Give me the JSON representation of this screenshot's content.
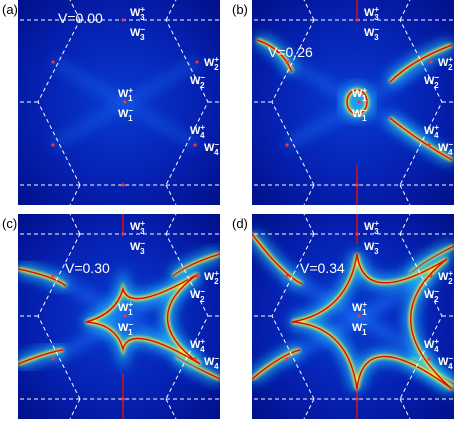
{
  "panels": [
    {
      "label": "(a)",
      "voltage": "V=0.00",
      "points": [
        {
          "base": "W",
          "sup": "+",
          "sub": "3"
        },
        {
          "base": "W",
          "sup": "−",
          "sub": "3"
        },
        {
          "base": "W",
          "sup": "+",
          "sub": "2"
        },
        {
          "base": "W",
          "sup": "−",
          "sub": "2"
        },
        {
          "base": "W",
          "sup": "+",
          "sub": "1"
        },
        {
          "base": "W",
          "sup": "−",
          "sub": "1"
        },
        {
          "base": "W",
          "sup": "+",
          "sub": "4"
        },
        {
          "base": "W",
          "sup": "−",
          "sub": "4"
        }
      ]
    },
    {
      "label": "(b)",
      "voltage": "V=0.26",
      "points": [
        {
          "base": "W",
          "sup": "+",
          "sub": "3"
        },
        {
          "base": "W",
          "sup": "−",
          "sub": "3"
        },
        {
          "base": "W",
          "sup": "+",
          "sub": "2"
        },
        {
          "base": "W",
          "sup": "−",
          "sub": "2"
        },
        {
          "base": "W",
          "sup": "+",
          "sub": "1"
        },
        {
          "base": "W",
          "sup": "−",
          "sub": "1"
        },
        {
          "base": "W",
          "sup": "+",
          "sub": "4"
        },
        {
          "base": "W",
          "sup": "−",
          "sub": "4"
        }
      ]
    },
    {
      "label": "(c)",
      "voltage": "V=0.30",
      "points": [
        {
          "base": "W",
          "sup": "+",
          "sub": "3"
        },
        {
          "base": "W",
          "sup": "−",
          "sub": "3"
        },
        {
          "base": "W",
          "sup": "+",
          "sub": "2"
        },
        {
          "base": "W",
          "sup": "−",
          "sub": "2"
        },
        {
          "base": "W",
          "sup": "+",
          "sub": "1"
        },
        {
          "base": "W",
          "sup": "−",
          "sub": "1"
        },
        {
          "base": "W",
          "sup": "+",
          "sub": "4"
        },
        {
          "base": "W",
          "sup": "−",
          "sub": "4"
        }
      ]
    },
    {
      "label": "(d)",
      "voltage": "V=0.34",
      "points": [
        {
          "base": "W",
          "sup": "+",
          "sub": "3"
        },
        {
          "base": "W",
          "sup": "−",
          "sub": "3"
        },
        {
          "base": "W",
          "sup": "+",
          "sub": "2"
        },
        {
          "base": "W",
          "sup": "−",
          "sub": "2"
        },
        {
          "base": "W",
          "sup": "+",
          "sub": "1"
        },
        {
          "base": "W",
          "sup": "−",
          "sub": "1"
        },
        {
          "base": "W",
          "sup": "+",
          "sub": "4"
        },
        {
          "base": "W",
          "sup": "−",
          "sub": "4"
        }
      ]
    }
  ]
}
